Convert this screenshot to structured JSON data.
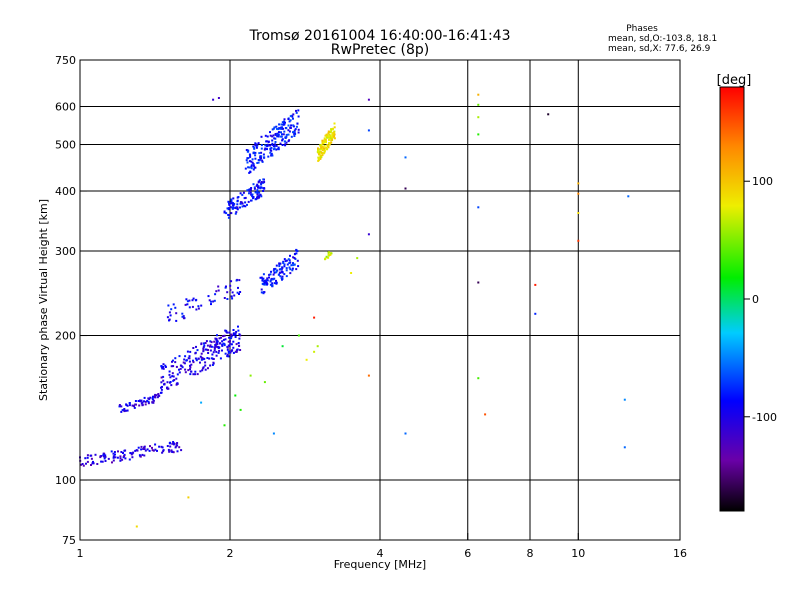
{
  "chart_data": {
    "type": "scatter",
    "title": "Tromsø 20161004 16:40:00-16:41:43",
    "subtitle": "RwPretec (8p)",
    "xlabel": "Frequency [MHz]",
    "ylabel": "Stationary phase Virtual Height [km]",
    "x_scale": "log",
    "y_scale": "log",
    "xlim": [
      1,
      16
    ],
    "ylim": [
      75,
      750
    ],
    "x_ticks": [
      1,
      2,
      4,
      6,
      8,
      10,
      16
    ],
    "y_ticks": [
      75,
      100,
      200,
      300,
      400,
      500,
      600,
      750
    ],
    "grid": true,
    "stats": {
      "header": "Phases",
      "line1": "mean, sd,O:-103.8, 18.1",
      "line2": "mean, sd,X:  77.6, 26.9"
    },
    "colorbar": {
      "label": "[deg]",
      "ticks": [
        100,
        0,
        -100
      ],
      "range": [
        -180,
        180
      ]
    },
    "traces": [
      {
        "role": "bottom-trace-O",
        "x_range": [
          1.0,
          1.6
        ],
        "h_range": [
          103,
          125
        ],
        "phase": -115,
        "count": 120
      },
      {
        "role": "trace-O-140",
        "x_range": [
          1.2,
          1.45
        ],
        "h_range": [
          135,
          155
        ],
        "phase": -110,
        "count": 60
      },
      {
        "role": "trace-O-170",
        "x_range": [
          1.45,
          2.1
        ],
        "h_range": [
          140,
          230
        ],
        "phase": -110,
        "count": 240
      },
      {
        "role": "trace-O-270",
        "x_range": [
          1.5,
          2.1
        ],
        "h_range": [
          200,
          280
        ],
        "phase": -105,
        "count": 60
      },
      {
        "role": "F-trace-O",
        "x_range": [
          1.95,
          2.35
        ],
        "h_range": [
          330,
          450
        ],
        "phase": -100,
        "count": 120
      },
      {
        "role": "F-trace-O-high",
        "x_range": [
          2.15,
          2.75
        ],
        "h_range": [
          400,
          640
        ],
        "phase": -95,
        "count": 200
      },
      {
        "role": "F-trace-O-mid",
        "x_range": [
          2.3,
          2.75
        ],
        "h_range": [
          230,
          320
        ],
        "phase": -95,
        "count": 120
      },
      {
        "role": "X-trace",
        "x_range": [
          3.0,
          3.25
        ],
        "h_range": [
          440,
          580
        ],
        "phase": 85,
        "count": 120
      },
      {
        "role": "X-trace-low",
        "x_range": [
          3.1,
          3.2
        ],
        "h_range": [
          280,
          310
        ],
        "phase": 70,
        "count": 12
      }
    ],
    "scattered_points": [
      {
        "x": 1.85,
        "y": 620,
        "phase": -120
      },
      {
        "x": 1.9,
        "y": 625,
        "phase": -125
      },
      {
        "x": 1.3,
        "y": 80,
        "phase": 90
      },
      {
        "x": 1.65,
        "y": 92,
        "phase": 95
      },
      {
        "x": 3.8,
        "y": 620,
        "phase": -130
      },
      {
        "x": 3.8,
        "y": 535,
        "phase": -80
      },
      {
        "x": 3.8,
        "y": 325,
        "phase": -120
      },
      {
        "x": 3.8,
        "y": 165,
        "phase": 140
      },
      {
        "x": 3.6,
        "y": 290,
        "phase": 60
      },
      {
        "x": 3.5,
        "y": 270,
        "phase": 80
      },
      {
        "x": 4.5,
        "y": 470,
        "phase": -70
      },
      {
        "x": 4.5,
        "y": 405,
        "phase": -160
      },
      {
        "x": 4.5,
        "y": 125,
        "phase": -70
      },
      {
        "x": 6.3,
        "y": 635,
        "phase": 110
      },
      {
        "x": 6.3,
        "y": 605,
        "phase": 40
      },
      {
        "x": 6.3,
        "y": 570,
        "phase": 60
      },
      {
        "x": 6.3,
        "y": 525,
        "phase": 20
      },
      {
        "x": 6.3,
        "y": 370,
        "phase": -80
      },
      {
        "x": 6.3,
        "y": 258,
        "phase": -160
      },
      {
        "x": 6.3,
        "y": 163,
        "phase": 30
      },
      {
        "x": 6.5,
        "y": 137,
        "phase": 150
      },
      {
        "x": 8.2,
        "y": 255,
        "phase": 170
      },
      {
        "x": 8.2,
        "y": 222,
        "phase": -90
      },
      {
        "x": 8.7,
        "y": 578,
        "phase": -170
      },
      {
        "x": 10.0,
        "y": 415,
        "phase": 110
      },
      {
        "x": 10.0,
        "y": 395,
        "phase": 130
      },
      {
        "x": 10.0,
        "y": 360,
        "phase": 90
      },
      {
        "x": 10.0,
        "y": 315,
        "phase": 160
      },
      {
        "x": 12.6,
        "y": 390,
        "phase": -70
      },
      {
        "x": 12.4,
        "y": 147,
        "phase": -60
      },
      {
        "x": 12.4,
        "y": 117,
        "phase": -70
      },
      {
        "x": 2.95,
        "y": 218,
        "phase": 170
      },
      {
        "x": 2.85,
        "y": 178,
        "phase": 80
      },
      {
        "x": 2.95,
        "y": 185,
        "phase": 70
      },
      {
        "x": 3.0,
        "y": 190,
        "phase": 60
      },
      {
        "x": 2.75,
        "y": 200,
        "phase": 30
      },
      {
        "x": 2.55,
        "y": 190,
        "phase": 0
      },
      {
        "x": 2.35,
        "y": 160,
        "phase": 40
      },
      {
        "x": 2.2,
        "y": 165,
        "phase": 50
      },
      {
        "x": 2.05,
        "y": 150,
        "phase": 10
      },
      {
        "x": 2.1,
        "y": 140,
        "phase": 20
      },
      {
        "x": 2.45,
        "y": 125,
        "phase": -60
      },
      {
        "x": 1.95,
        "y": 130,
        "phase": 20
      },
      {
        "x": 1.75,
        "y": 145,
        "phase": -50
      }
    ]
  }
}
